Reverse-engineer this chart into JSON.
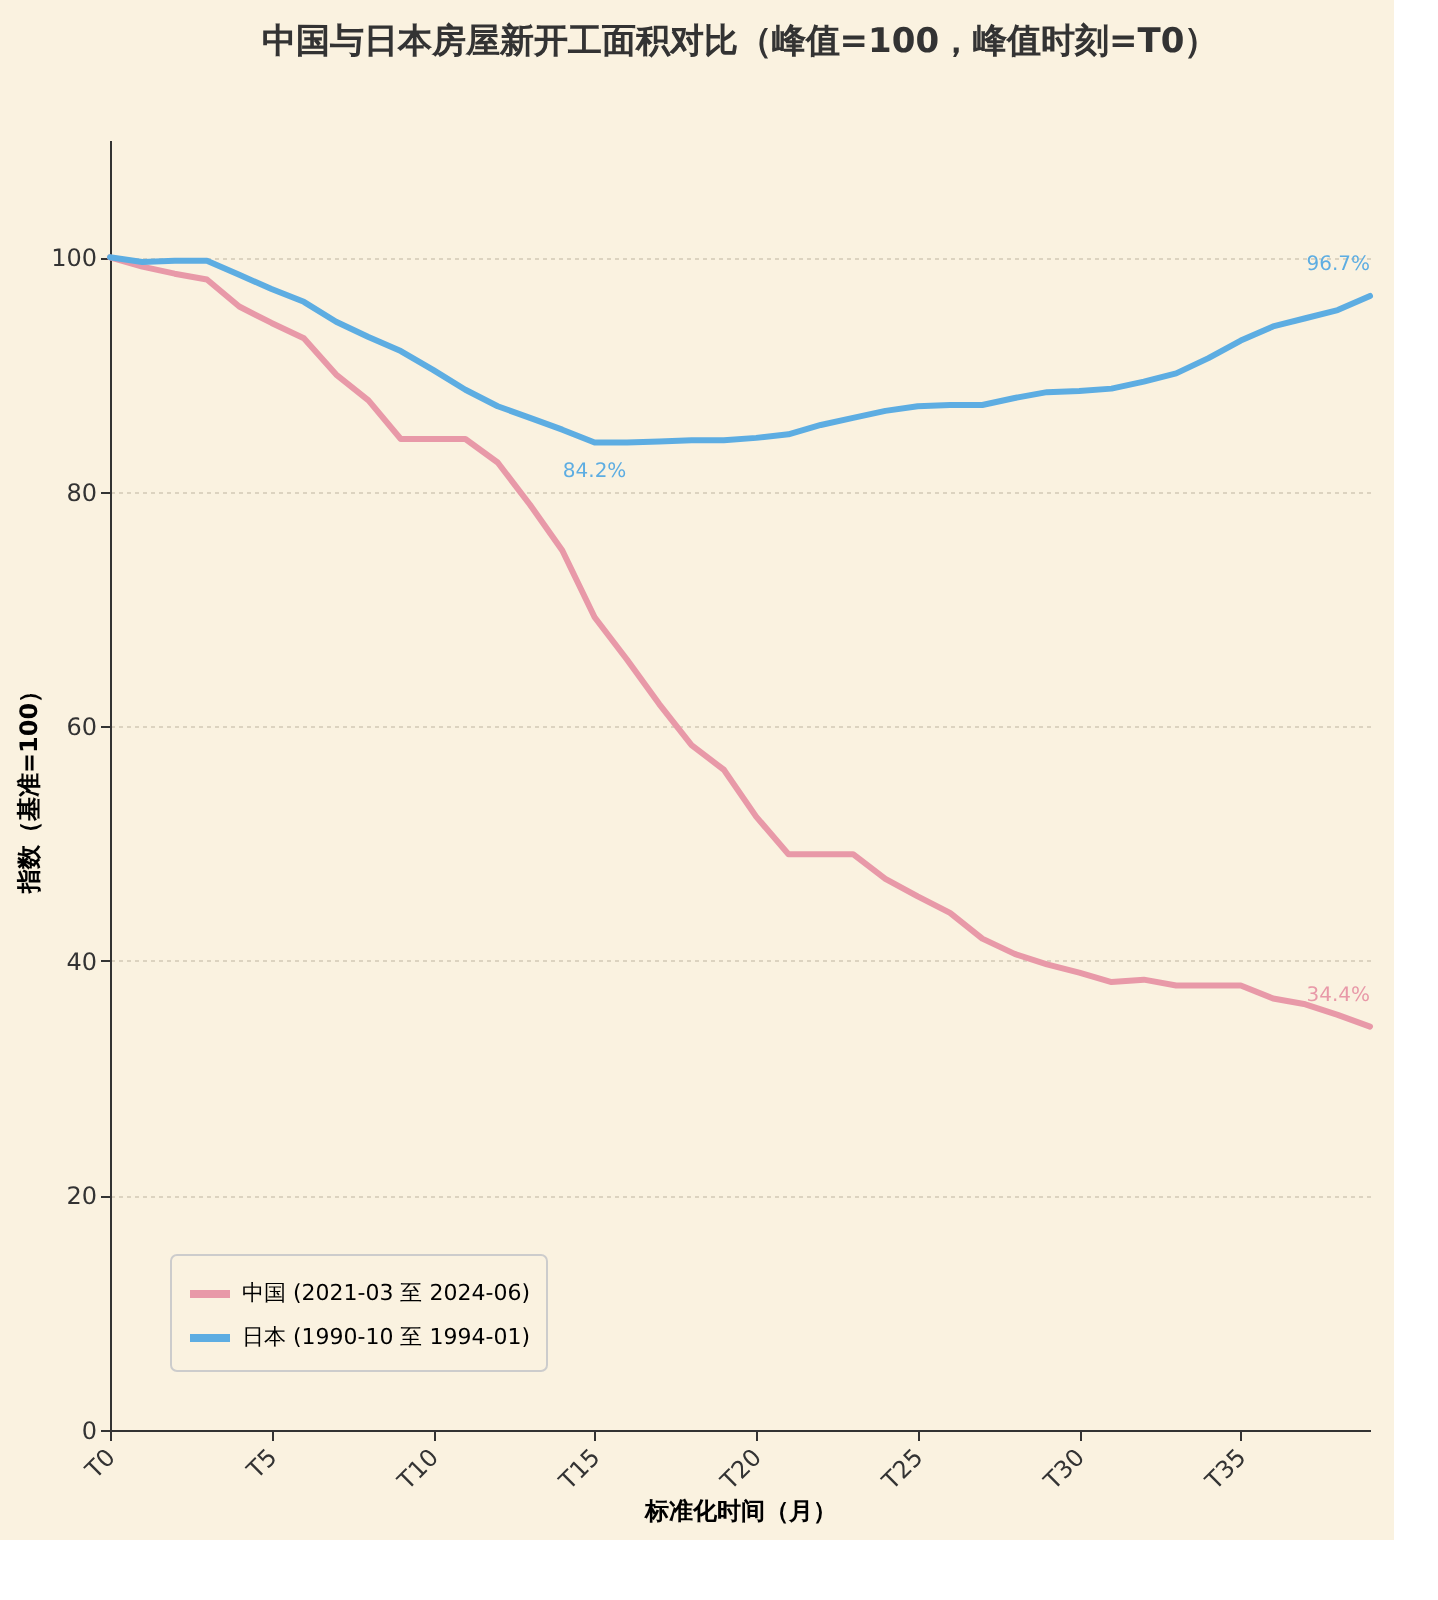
{
  "chart_data": {
    "type": "line",
    "title": "中国与日本房屋新开工面积对比（峰值=100，峰值时刻=T0）",
    "xlabel": "标准化时间（月）",
    "ylabel": "指数（基准=100）",
    "categories": [
      "T0",
      null,
      null,
      null,
      null,
      "T5",
      null,
      null,
      null,
      null,
      "T10",
      null,
      null,
      null,
      null,
      "T15",
      null,
      null,
      null,
      null,
      "T20",
      null,
      null,
      null,
      null,
      "T25",
      null,
      null,
      null,
      null,
      "T30",
      null,
      null,
      null,
      null,
      "T35",
      null,
      null,
      null,
      null
    ],
    "series": [
      {
        "name": "中国 (2021-03 至 2024-06)",
        "color": "#e899a8",
        "values": [
          100,
          99.2,
          98.6,
          98.1,
          95.8,
          94.4,
          93.1,
          90.0,
          87.8,
          84.5,
          84.5,
          84.5,
          82.5,
          78.9,
          75.0,
          69.3,
          65.7,
          61.9,
          58.4,
          56.3,
          52.3,
          49.1,
          49.1,
          49.1,
          47.0,
          45.5,
          44.1,
          41.9,
          40.6,
          39.7,
          39.0,
          38.2,
          38.4,
          37.9,
          37.9,
          37.9,
          36.8,
          36.3,
          35.4,
          34.4
        ]
      },
      {
        "name": "日本 (1990-10 至 1994-01)",
        "color": "#5dade2",
        "values": [
          100,
          99.6,
          99.7,
          99.7,
          98.5,
          97.3,
          96.2,
          94.5,
          93.2,
          92.0,
          90.4,
          88.7,
          87.3,
          86.3,
          85.3,
          84.2,
          84.2,
          84.3,
          84.4,
          84.4,
          84.6,
          84.9,
          85.7,
          86.3,
          86.9,
          87.3,
          87.4,
          87.4,
          88.0,
          88.5,
          88.6,
          88.8,
          89.4,
          90.1,
          91.4,
          92.9,
          94.1,
          94.8,
          95.5,
          96.7
        ]
      }
    ],
    "annotations": [
      {
        "text": "84.2%",
        "x": "T15",
        "y": 84.2
      },
      {
        "text": "96.7%",
        "y": 96.7
      },
      {
        "text": "34.4%",
        "y": 34.4
      }
    ],
    "ylim": [
      0,
      110
    ],
    "yticks": [
      0,
      20,
      40,
      60,
      80,
      100
    ],
    "grid": "y",
    "legend": "bottom left",
    "marker": "none",
    "line_style": "solid"
  }
}
